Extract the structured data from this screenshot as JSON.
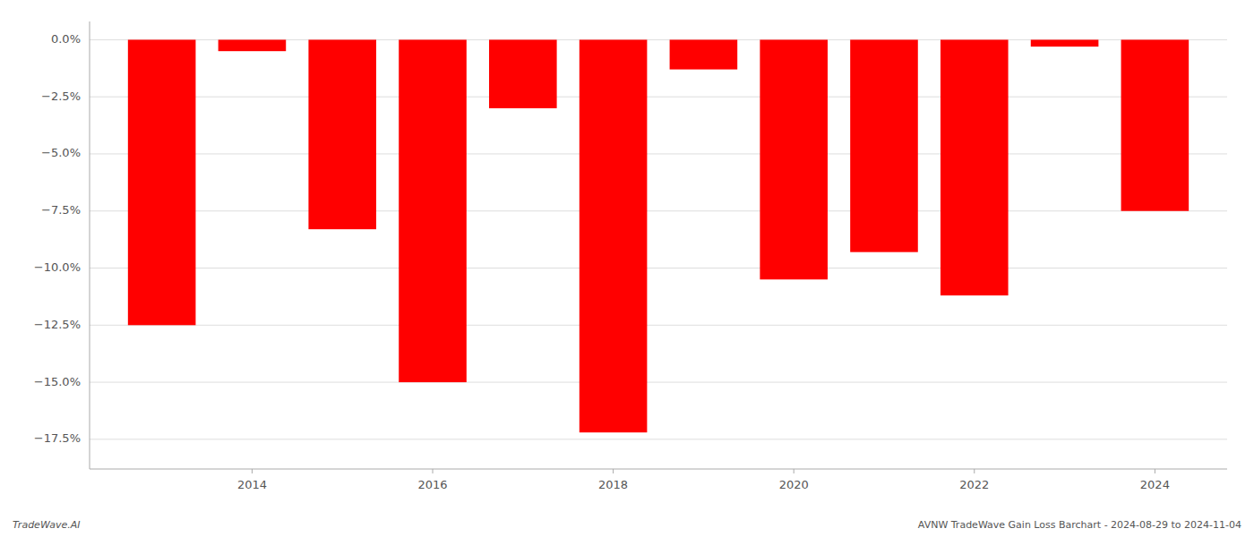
{
  "chart_data": {
    "type": "bar",
    "x": [
      2013,
      2014,
      2015,
      2016,
      2017,
      2018,
      2019,
      2020,
      2021,
      2022,
      2023,
      2024
    ],
    "values": [
      -12.5,
      -0.5,
      -8.3,
      -15.0,
      -3.0,
      -17.2,
      -1.3,
      -10.5,
      -9.3,
      -11.2,
      -0.3,
      -7.5
    ],
    "color": "#ff0000",
    "xlim": [
      2012.2,
      2024.8
    ],
    "xticks": [
      2014,
      2016,
      2018,
      2020,
      2022,
      2024
    ],
    "ylim": [
      -18.8,
      0.8
    ],
    "yticks": [
      {
        "value": 0.0,
        "label": "0.0%"
      },
      {
        "value": -2.5,
        "label": "−2.5%"
      },
      {
        "value": -5.0,
        "label": "−5.0%"
      },
      {
        "value": -7.5,
        "label": "−7.5%"
      },
      {
        "value": -10.0,
        "label": "−10.0%"
      },
      {
        "value": -12.5,
        "label": "−12.5%"
      },
      {
        "value": -15.0,
        "label": "−15.0%"
      },
      {
        "value": -17.5,
        "label": "−17.5%"
      }
    ],
    "grid": true,
    "annotations": [
      {
        "text": "TradeWave.AI"
      },
      {
        "text": "AVNW TradeWave Gain Loss Barchart - 2024-08-29 to 2024-11-04"
      }
    ]
  }
}
